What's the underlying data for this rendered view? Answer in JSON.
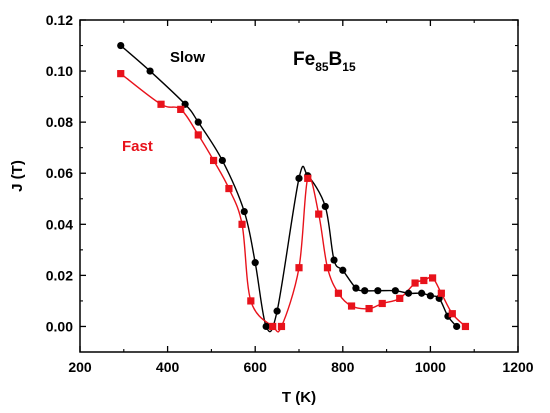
{
  "chart_data": {
    "type": "line",
    "title": "",
    "xlabel": "T (K)",
    "ylabel": "J (T)",
    "xlim": [
      200,
      1200
    ],
    "ylim": [
      -0.01,
      0.12
    ],
    "xticks": [
      200,
      400,
      600,
      800,
      1000,
      1200
    ],
    "xtick_labels": [
      "200",
      "400",
      "600",
      "800",
      "1000",
      "1200"
    ],
    "yticks": [
      0.0,
      0.02,
      0.04,
      0.06,
      0.08,
      0.1,
      0.12
    ],
    "ytick_labels": [
      "0.00",
      "0.02",
      "0.04",
      "0.06",
      "0.08",
      "0.10",
      "0.12"
    ],
    "grid": false,
    "series": [
      {
        "name": "Slow",
        "color": "#000000",
        "marker": "circle",
        "x": [
          293,
          360,
          440,
          470,
          525,
          575,
          600,
          625,
          650,
          700,
          720,
          760,
          780,
          800,
          830,
          850,
          880,
          920,
          950,
          980,
          1000,
          1020,
          1040,
          1060
        ],
        "y": [
          0.11,
          0.1,
          0.087,
          0.08,
          0.065,
          0.045,
          0.025,
          0.0,
          0.006,
          0.058,
          0.059,
          0.047,
          0.026,
          0.022,
          0.015,
          0.014,
          0.014,
          0.014,
          0.013,
          0.013,
          0.012,
          0.011,
          0.004,
          0.0
        ]
      },
      {
        "name": "Fast",
        "color": "#e8121b",
        "marker": "square",
        "x": [
          293,
          385,
          430,
          470,
          505,
          540,
          570,
          590,
          640,
          660,
          700,
          720,
          745,
          765,
          790,
          820,
          860,
          890,
          930,
          965,
          985,
          1005,
          1025,
          1050,
          1080
        ],
        "y": [
          0.099,
          0.087,
          0.085,
          0.075,
          0.065,
          0.054,
          0.04,
          0.01,
          0.0,
          0.0,
          0.023,
          0.058,
          0.044,
          0.023,
          0.013,
          0.008,
          0.007,
          0.009,
          0.011,
          0.017,
          0.018,
          0.019,
          0.013,
          0.005,
          0.0
        ]
      }
    ],
    "annotations": [
      {
        "text": "Slow",
        "color": "#000000"
      },
      {
        "text": "Fast",
        "color": "#e8121b"
      }
    ],
    "formula": {
      "element1": "Fe",
      "sub1": "85",
      "element2": "B",
      "sub2": "15"
    }
  }
}
